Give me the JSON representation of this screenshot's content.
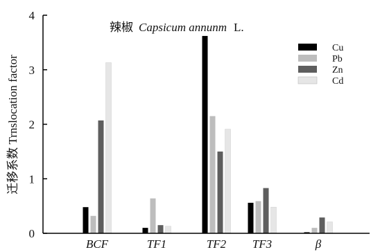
{
  "chart_data": {
    "type": "bar",
    "title": {
      "cn": "辣椒",
      "latin": "Capsicum annunm",
      "suffix": "L."
    },
    "ylabel": "迁移系数 Trnslocation factor",
    "xlabel": "",
    "categories": [
      "BCF",
      "TF1",
      "TF2",
      "TF3",
      "β"
    ],
    "ylim": [
      0,
      4
    ],
    "yticks": [
      "0",
      "1",
      "2",
      "3",
      "4"
    ],
    "legend_position": "top-right",
    "series": [
      {
        "name": "Cu",
        "color": "#000000",
        "values": [
          0.48,
          0.1,
          3.62,
          0.56,
          0.02
        ]
      },
      {
        "name": "Pb",
        "color": "#bdbdbd",
        "values": [
          0.32,
          0.64,
          2.15,
          0.59,
          0.1
        ]
      },
      {
        "name": "Zn",
        "color": "#5e5e5e",
        "values": [
          2.07,
          0.15,
          1.5,
          0.83,
          0.29
        ]
      },
      {
        "name": "Cd",
        "color": "#e6e6e6",
        "values": [
          3.13,
          0.13,
          1.91,
          0.48,
          0.21
        ]
      }
    ]
  }
}
